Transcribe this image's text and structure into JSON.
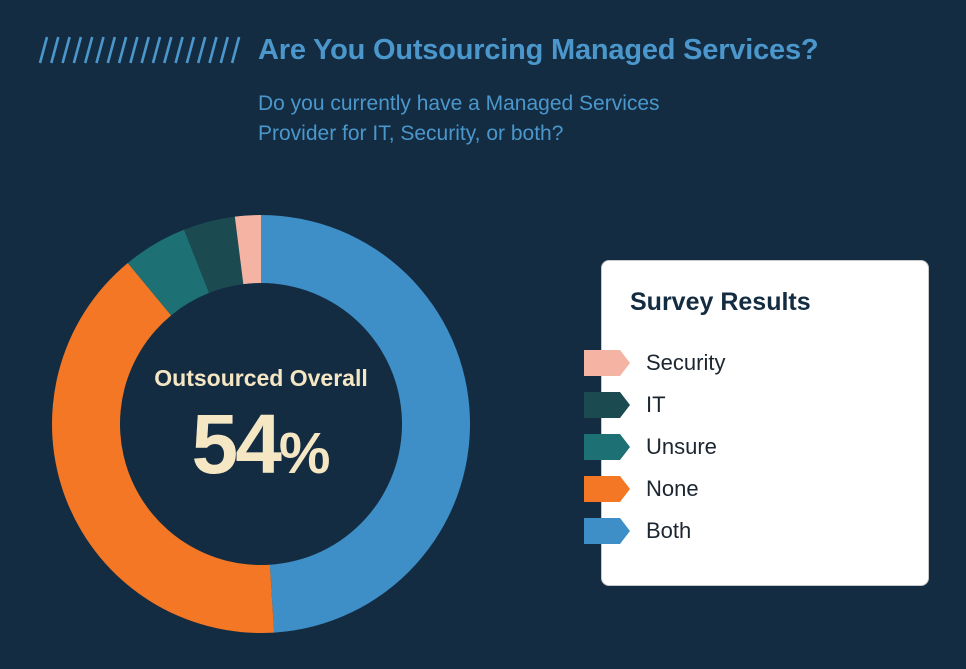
{
  "header": {
    "title": "Are You Outsourcing Managed Services?",
    "subtitle_line1": "Do you currently have a Managed Services",
    "subtitle_line2": "Provider for IT, Security, or both?"
  },
  "center": {
    "label": "Outsourced Overall",
    "value": "54",
    "unit": "%"
  },
  "legend": {
    "title": "Survey Results"
  },
  "chart_data": {
    "type": "pie",
    "donut": true,
    "categories": [
      "Both",
      "None",
      "Unsure",
      "IT",
      "Security"
    ],
    "values": [
      49,
      40,
      5,
      4,
      2
    ],
    "colors": [
      "#3e8fc7",
      "#f37724",
      "#1d7074",
      "#1b4a50",
      "#f4b3a3"
    ],
    "legend_order": [
      "Security",
      "IT",
      "Unsure",
      "None",
      "Both"
    ],
    "legend_placement": "right",
    "center_text": "Outsourced Overall 54%"
  },
  "colors": {
    "background": "#132c42",
    "title": "#4b97cc",
    "center_text": "#f6e7c4"
  }
}
